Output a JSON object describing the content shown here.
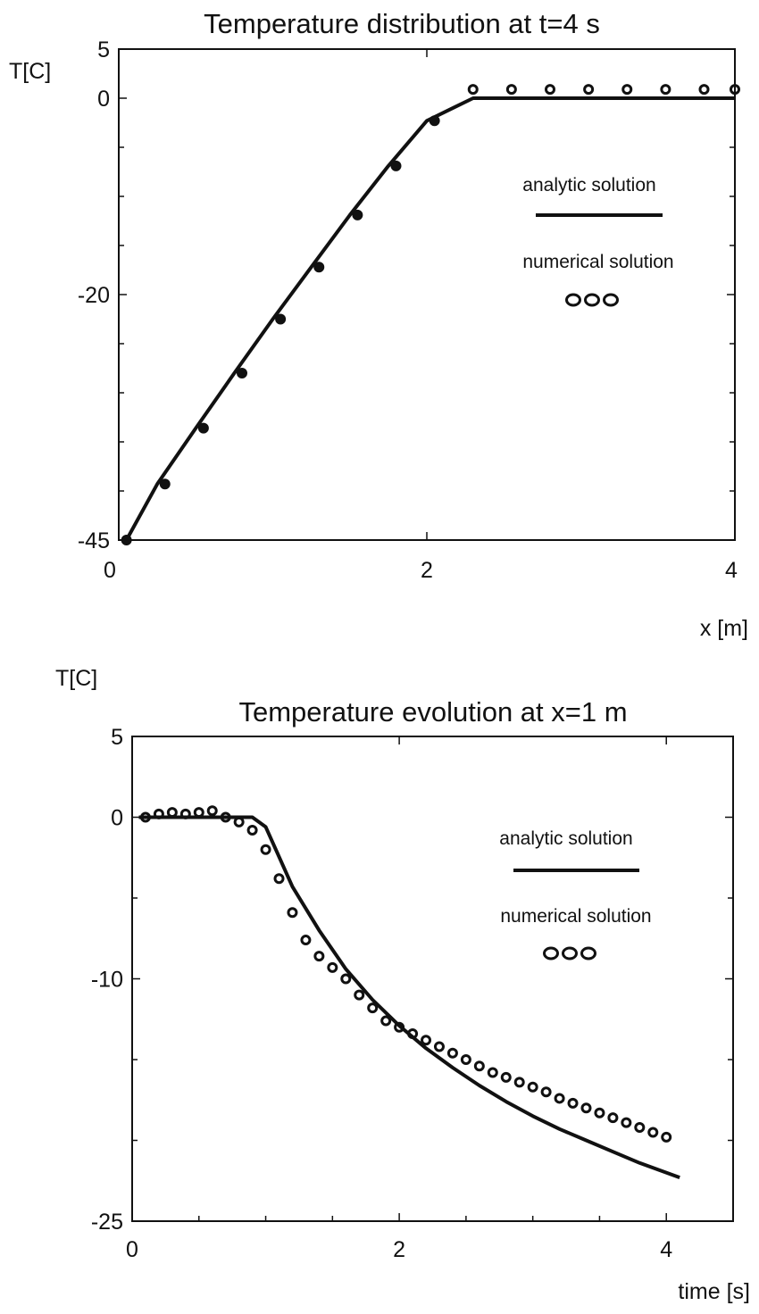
{
  "chart_data": [
    {
      "type": "line",
      "title": "Temperature distribution at t=4 s",
      "xlabel": "x [m]",
      "ylabel": "T[C]",
      "xlim": [
        0,
        4
      ],
      "ylim": [
        -45,
        5
      ],
      "x_tick_labels": [
        "0",
        "2",
        "4"
      ],
      "x_ticks": [
        0,
        2,
        4
      ],
      "y_tick_labels": [
        "5",
        "0",
        "-20",
        "-45"
      ],
      "y_ticks": [
        5,
        0,
        -20,
        -45
      ],
      "y_minor_ticks": [
        -5,
        -10,
        -15,
        -25,
        -30,
        -35,
        -40
      ],
      "legend": {
        "analytic_label": "analytic solution",
        "numerical_label": "numerical solution",
        "placement": "right"
      },
      "series": [
        {
          "style": "line",
          "x": [
            0.05,
            0.25,
            0.5,
            0.75,
            1.0,
            1.25,
            1.5,
            1.75,
            2.0,
            2.3,
            4.0
          ],
          "y": [
            -45,
            -39.3,
            -33.6,
            -28.0,
            -22.5,
            -17.2,
            -11.9,
            -6.9,
            -2.3,
            0,
            0
          ]
        },
        {
          "style": "filled-markers",
          "x": [
            0.05,
            0.3,
            0.55,
            0.8,
            1.05,
            1.3,
            1.55,
            1.8,
            2.05
          ],
          "y": [
            -45,
            -39.3,
            -33.6,
            -28.0,
            -22.5,
            -17.2,
            -11.9,
            -6.9,
            -2.3
          ]
        },
        {
          "style": "open-markers",
          "x": [
            2.3,
            2.55,
            2.8,
            3.05,
            3.3,
            3.55,
            3.8,
            4.0
          ],
          "y": [
            0.9,
            0.9,
            0.9,
            0.9,
            0.9,
            0.9,
            0.9,
            0.9
          ]
        }
      ]
    },
    {
      "type": "line",
      "title": "Temperature evolution at x=1 m",
      "xlabel": "time [s]",
      "ylabel": "T[C]",
      "xlim": [
        0,
        4.5
      ],
      "ylim": [
        -25,
        5
      ],
      "x_tick_labels": [
        "0",
        "2",
        "4"
      ],
      "x_ticks": [
        0,
        2,
        4
      ],
      "y_tick_labels": [
        "5",
        "0",
        "-10",
        "-25"
      ],
      "y_ticks": [
        5,
        0,
        -10,
        -25
      ],
      "y_minor_ticks": [
        -5,
        -15,
        -20
      ],
      "x_minor_ticks": [
        0.5,
        1,
        1.5,
        2.5,
        3,
        3.5
      ],
      "legend": {
        "analytic_label": "analytic solution",
        "numerical_label": "numerical solution",
        "placement": "right"
      },
      "series": [
        {
          "style": "line",
          "x": [
            0.05,
            0.9,
            1.0,
            1.2,
            1.4,
            1.6,
            1.8,
            2.0,
            2.2,
            2.4,
            2.6,
            2.8,
            3.0,
            3.2,
            3.4,
            3.6,
            3.8,
            4.1
          ],
          "y": [
            0,
            0,
            -0.6,
            -4.3,
            -7.0,
            -9.4,
            -11.3,
            -12.9,
            -14.3,
            -15.5,
            -16.6,
            -17.6,
            -18.5,
            -19.3,
            -20.0,
            -20.7,
            -21.4,
            -22.3
          ],
          "_note_": ""
        },
        {
          "style": "open-markers",
          "x": [
            0.1,
            0.2,
            0.3,
            0.4,
            0.5,
            0.6,
            0.7,
            0.8,
            0.9,
            1.0,
            1.1,
            1.2,
            1.3,
            1.4,
            1.5,
            1.6,
            1.7,
            1.8,
            1.9,
            2.0,
            2.1,
            2.2,
            2.3,
            2.4,
            2.5,
            2.6,
            2.7,
            2.8,
            2.9,
            3.0,
            3.1,
            3.2,
            3.3,
            3.4,
            3.5,
            3.6,
            3.7,
            3.8,
            3.9,
            4.0
          ],
          "y": [
            0,
            0.2,
            0.3,
            0.2,
            0.3,
            0.4,
            0,
            -0.3,
            -0.8,
            -2.0,
            -3.8,
            -5.9,
            -7.6,
            -8.6,
            -9.3,
            -10.0,
            -11.0,
            -11.8,
            -12.6,
            -13.0,
            -13.4,
            -13.8,
            -14.2,
            -14.6,
            -15.0,
            -15.4,
            -15.8,
            -16.1,
            -16.4,
            -16.7,
            -17.0,
            -17.4,
            -17.7,
            -18.0,
            -18.3,
            -18.6,
            -18.9,
            -19.2,
            -19.5,
            -19.8
          ]
        }
      ]
    }
  ]
}
